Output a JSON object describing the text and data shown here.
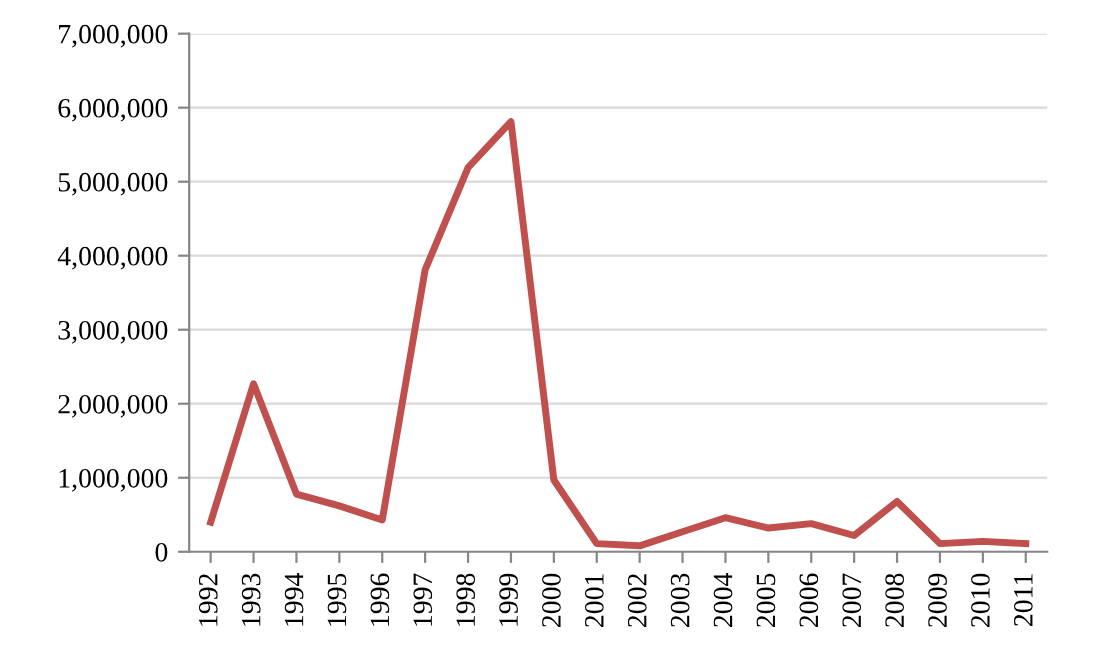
{
  "chart_data": {
    "type": "line",
    "categories": [
      "1992",
      "1993",
      "1994",
      "1995",
      "1996",
      "1997",
      "1998",
      "1999",
      "2000",
      "2001",
      "2002",
      "2003",
      "2004",
      "2005",
      "2006",
      "2007",
      "2008",
      "2009",
      "2010",
      "2011"
    ],
    "series": [
      {
        "color": "#c0504d",
        "values": [
          400000,
          2270000,
          780000,
          620000,
          430000,
          3810000,
          5190000,
          5810000,
          970000,
          110000,
          80000,
          270000,
          460000,
          320000,
          380000,
          220000,
          680000,
          110000,
          140000,
          110000
        ]
      }
    ],
    "ylim": [
      0,
      7000000
    ],
    "yticks": [
      {
        "value": 0,
        "label": "0"
      },
      {
        "value": 1000000,
        "label": "1,000,000"
      },
      {
        "value": 2000000,
        "label": "2,000,000"
      },
      {
        "value": 3000000,
        "label": "3,000,000"
      },
      {
        "value": 4000000,
        "label": "4,000,000"
      },
      {
        "value": 5000000,
        "label": "5,000,000"
      },
      {
        "value": 6000000,
        "label": "6,000,000"
      },
      {
        "value": 7000000,
        "label": "7,000,000"
      }
    ],
    "grid": "y",
    "marker": "none",
    "line_style": "solid",
    "legend": false
  }
}
